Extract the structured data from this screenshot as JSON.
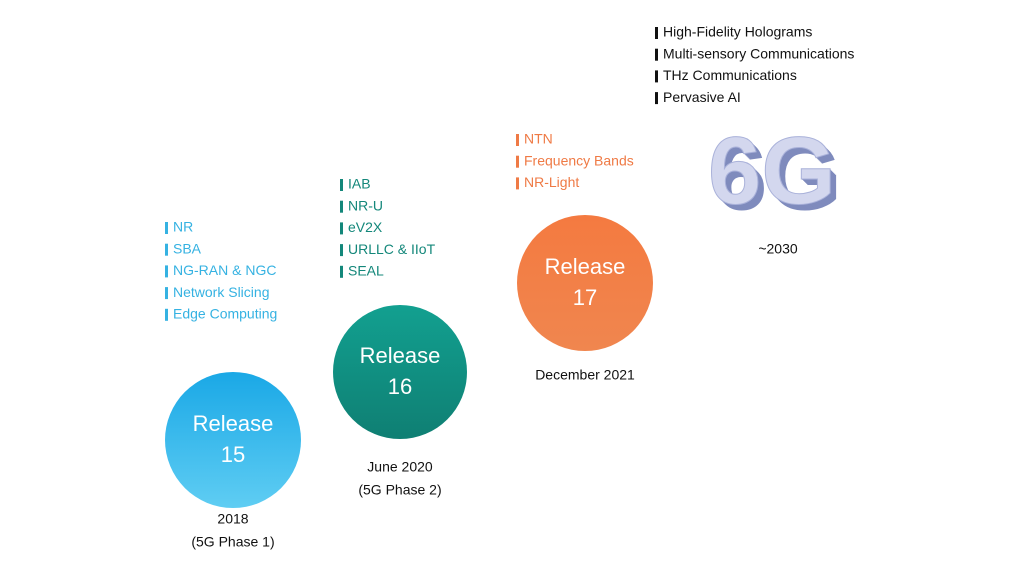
{
  "stages": [
    {
      "label": [
        "Release",
        "15"
      ],
      "date": [
        "2018",
        "(5G Phase 1)"
      ],
      "features": [
        "NR",
        "SBA",
        "NG-RAN & NGC",
        "Network Slicing",
        "Edge Computing"
      ]
    },
    {
      "label": [
        "Release",
        "16"
      ],
      "date": [
        "June 2020",
        "(5G Phase 2)"
      ],
      "features": [
        "IAB",
        "NR-U",
        "eV2X",
        "URLLC & IIoT",
        "SEAL"
      ]
    },
    {
      "label": [
        "Release",
        "17"
      ],
      "date": [
        "December 2021"
      ],
      "features": [
        "NTN",
        "Frequency Bands",
        "NR-Light"
      ]
    },
    {
      "label": [
        "6G"
      ],
      "date": [
        "~2030"
      ],
      "features": [
        "High-Fidelity Holograms",
        "Multi-sensory Communications",
        "THz Communications",
        "Pervasive AI"
      ]
    }
  ]
}
